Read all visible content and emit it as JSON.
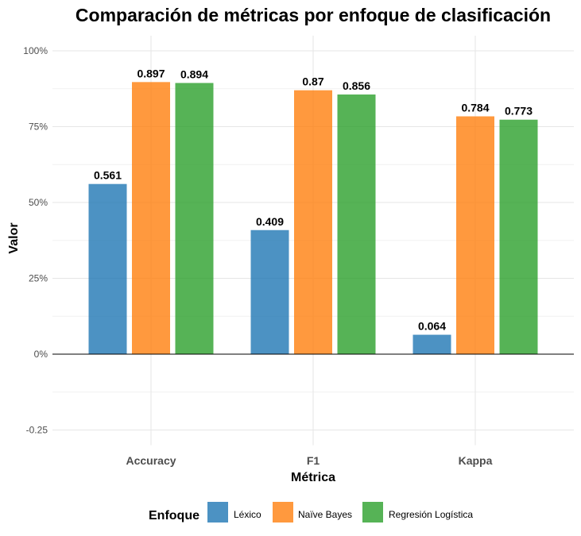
{
  "chart_data": {
    "type": "bar",
    "title": "Comparación de métricas por enfoque de clasificación",
    "xlabel": "Métrica",
    "ylabel": "Valor",
    "categories": [
      "Accuracy",
      "F1",
      "Kappa"
    ],
    "series": [
      {
        "name": "Léxico",
        "color": "#1f77b4",
        "values": [
          0.561,
          0.409,
          0.064
        ],
        "labels": [
          "0.561",
          "0.409",
          "0.064"
        ]
      },
      {
        "name": "Naïve Bayes",
        "color": "#ff7f0e",
        "values": [
          0.897,
          0.87,
          0.784
        ],
        "labels": [
          "0.897",
          "0.87",
          "0.784"
        ]
      },
      {
        "name": "Regresión Logística",
        "color": "#2ca02c",
        "values": [
          0.894,
          0.856,
          0.773
        ],
        "labels": [
          "0.894",
          "0.856",
          "0.773"
        ]
      }
    ],
    "ylim": [
      -0.3,
      1.05
    ],
    "y_ticks": [
      -0.25,
      0,
      0.25,
      0.5,
      0.75,
      1.0
    ],
    "y_tick_labels": [
      "-0.25",
      "0%",
      "25%",
      "50%",
      "75%",
      "100%"
    ],
    "legend": {
      "title": "Enfoque",
      "position": "bottom"
    },
    "grid": true
  }
}
